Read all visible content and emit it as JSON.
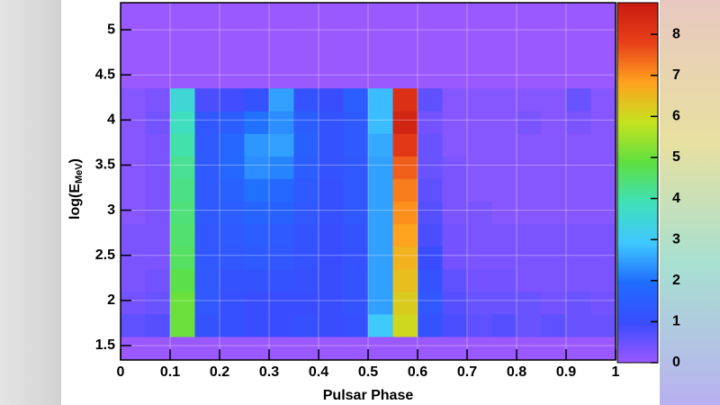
{
  "chart_data": {
    "type": "heatmap",
    "xlabel": "Pulsar Phase",
    "ylabel": [
      "log(E",
      "MeV",
      ")"
    ],
    "xlim": [
      0,
      1
    ],
    "xticks": [
      0,
      0.1,
      0.2,
      0.3,
      0.4,
      0.5,
      0.6,
      0.7,
      0.8,
      0.9,
      1
    ],
    "ylim": [
      1.34,
      5.3
    ],
    "yticks": [
      1.5,
      2,
      2.5,
      3,
      3.5,
      4,
      4.5,
      5
    ],
    "zlim": [
      0,
      8.77
    ],
    "zticks": [
      0,
      1,
      2,
      3,
      4,
      5,
      6,
      7,
      8
    ],
    "colorscale": [
      "#9a58ff",
      "#3a4cff",
      "#1f6cff",
      "#3fc8ff",
      "#3fe0b8",
      "#5ee040",
      "#c4e21e",
      "#ffa21e",
      "#e8401a",
      "#c81a10"
    ],
    "grid": true,
    "x_bins": [
      0,
      0.05,
      0.1,
      0.15,
      0.2,
      0.25,
      0.3,
      0.35,
      0.4,
      0.45,
      0.5,
      0.55,
      0.6,
      0.65,
      0.7,
      0.75,
      0.8,
      0.85,
      0.9,
      0.95,
      1
    ],
    "y_bins": [
      1.6,
      1.85,
      2.1,
      2.35,
      2.6,
      2.85,
      3.1,
      3.35,
      3.6,
      3.85,
      4.1,
      4.35
    ],
    "z": [
      [
        0.6,
        0.7,
        5,
        1.2,
        1.1,
        1.0,
        1.0,
        1.1,
        1.0,
        1.1,
        3,
        6,
        1.2,
        0.8,
        0.6,
        0.7,
        0.5,
        0.6,
        0.5,
        0.5
      ],
      [
        0.4,
        0.5,
        5,
        1.3,
        1.1,
        1.0,
        1.0,
        1.0,
        1.0,
        1.2,
        2.5,
        6.2,
        1.3,
        0.7,
        0.5,
        0.5,
        0.5,
        0.4,
        0.5,
        0.4
      ],
      [
        0.3,
        0.4,
        4.8,
        1.3,
        1.2,
        1.2,
        1.2,
        1.1,
        1.0,
        1.2,
        2.5,
        6.4,
        1.2,
        0.6,
        0.4,
        0.4,
        0.3,
        0.3,
        0.3,
        0.3
      ],
      [
        0.3,
        0.3,
        4.6,
        1.3,
        1.3,
        1.4,
        1.3,
        1.2,
        1.0,
        1.2,
        2.5,
        6.6,
        1.0,
        0.4,
        0.3,
        0.3,
        0.3,
        0.3,
        0.3,
        0.3
      ],
      [
        0.3,
        0.3,
        4.5,
        1.3,
        1.4,
        1.5,
        1.4,
        1.2,
        1.0,
        1.2,
        2.5,
        6.8,
        0.8,
        0.4,
        0.3,
        0.3,
        0.3,
        0.3,
        0.3,
        0.3
      ],
      [
        0.2,
        0.3,
        4.4,
        1.4,
        1.5,
        1.7,
        1.6,
        1.3,
        1.1,
        1.3,
        2.5,
        7.0,
        0.7,
        0.3,
        0.3,
        0.2,
        0.2,
        0.2,
        0.2,
        0.2
      ],
      [
        0.2,
        0.3,
        4.3,
        1.4,
        1.6,
        2.0,
        1.8,
        1.4,
        1.1,
        1.3,
        2.5,
        7.2,
        0.6,
        0.3,
        0.2,
        0.2,
        0.2,
        0.2,
        0.2,
        0.2
      ],
      [
        0.2,
        0.3,
        4.2,
        1.4,
        1.8,
        2.3,
        2.2,
        1.5,
        1.2,
        1.3,
        2.5,
        7.5,
        0.5,
        0.3,
        0.2,
        0.2,
        0.2,
        0.2,
        0.2,
        0.2
      ],
      [
        0.2,
        0.3,
        4.0,
        1.4,
        1.8,
        2.4,
        2.5,
        1.6,
        1.2,
        1.4,
        2.6,
        8.0,
        0.5,
        0.2,
        0.2,
        0.2,
        0.2,
        0.2,
        0.2,
        0.2
      ],
      [
        0.2,
        0.4,
        3.8,
        1.3,
        1.5,
        2.0,
        2.3,
        1.5,
        1.2,
        1.4,
        2.8,
        8.5,
        0.4,
        0.2,
        0.2,
        0.2,
        0.3,
        0.2,
        0.3,
        0.2
      ],
      [
        0.2,
        0.3,
        3.5,
        0.8,
        0.9,
        1.2,
        2.5,
        1.2,
        1.0,
        1.5,
        2.8,
        8.2,
        0.6,
        0.2,
        0.2,
        0.2,
        0.2,
        0.2,
        0.5,
        0.2
      ]
    ]
  }
}
